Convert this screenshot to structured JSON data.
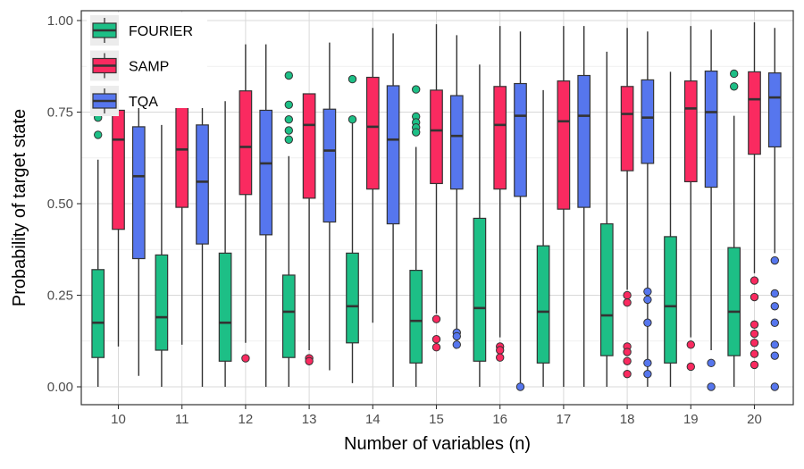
{
  "chart_data": {
    "type": "box",
    "title": "",
    "xlabel": "Number of variables (n)",
    "ylabel": "Probability of target state",
    "ylim": [
      0,
      1
    ],
    "yticks": [
      0.0,
      0.25,
      0.5,
      0.75,
      1.0
    ],
    "ytick_labels": [
      "0.00",
      "0.25",
      "0.50",
      "0.75",
      "1.00"
    ],
    "categories": [
      "10",
      "11",
      "12",
      "13",
      "14",
      "15",
      "16",
      "17",
      "18",
      "19",
      "20"
    ],
    "grid": true,
    "legend_position": "top-left",
    "series": [
      {
        "name": "FOURIER",
        "color": "#1DBF86",
        "boxes": [
          {
            "min": 0.0,
            "q1": 0.08,
            "median": 0.175,
            "q3": 0.32,
            "max": 0.62,
            "outliers": [
              0.735,
              0.688
            ]
          },
          {
            "min": 0.0,
            "q1": 0.1,
            "median": 0.19,
            "q3": 0.36,
            "max": 0.715,
            "outliers": [
              0.778
            ]
          },
          {
            "min": 0.0,
            "q1": 0.07,
            "median": 0.175,
            "q3": 0.365,
            "max": 0.78,
            "outliers": []
          },
          {
            "min": 0.0,
            "q1": 0.08,
            "median": 0.205,
            "q3": 0.305,
            "max": 0.63,
            "outliers": [
              0.85,
              0.77,
              0.73,
              0.7,
              0.675
            ]
          },
          {
            "min": 0.01,
            "q1": 0.12,
            "median": 0.22,
            "q3": 0.365,
            "max": 0.725,
            "outliers": [
              0.84,
              0.73
            ]
          },
          {
            "min": 0.0,
            "q1": 0.065,
            "median": 0.18,
            "q3": 0.318,
            "max": 0.655,
            "outliers": [
              0.812,
              0.738,
              0.722,
              0.708,
              0.695
            ]
          },
          {
            "min": 0.0,
            "q1": 0.07,
            "median": 0.215,
            "q3": 0.46,
            "max": 0.88,
            "outliers": []
          },
          {
            "min": 0.0,
            "q1": 0.065,
            "median": 0.205,
            "q3": 0.385,
            "max": 0.81,
            "outliers": []
          },
          {
            "min": 0.0,
            "q1": 0.085,
            "median": 0.195,
            "q3": 0.445,
            "max": 0.915,
            "outliers": []
          },
          {
            "min": 0.0,
            "q1": 0.065,
            "median": 0.22,
            "q3": 0.41,
            "max": 0.86,
            "outliers": []
          },
          {
            "min": 0.0,
            "q1": 0.085,
            "median": 0.205,
            "q3": 0.38,
            "max": 0.74,
            "outliers": [
              0.855,
              0.82
            ]
          }
        ]
      },
      {
        "name": "SAMP",
        "color": "#FA2A60",
        "boxes": [
          {
            "min": 0.11,
            "q1": 0.43,
            "median": 0.675,
            "q3": 0.755,
            "max": 0.755,
            "outliers": []
          },
          {
            "min": 0.115,
            "q1": 0.49,
            "median": 0.648,
            "q3": 0.765,
            "max": 0.92,
            "outliers": []
          },
          {
            "min": 0.12,
            "q1": 0.525,
            "median": 0.655,
            "q3": 0.808,
            "max": 0.935,
            "outliers": [
              0.078
            ]
          },
          {
            "min": 0.1,
            "q1": 0.515,
            "median": 0.715,
            "q3": 0.8,
            "max": 0.8,
            "outliers": [
              0.078,
              0.07
            ]
          },
          {
            "min": 0.175,
            "q1": 0.54,
            "median": 0.71,
            "q3": 0.845,
            "max": 0.98,
            "outliers": []
          },
          {
            "min": 0.2,
            "q1": 0.555,
            "median": 0.7,
            "q3": 0.81,
            "max": 0.99,
            "outliers": [
              0.185,
              0.13,
              0.108
            ]
          },
          {
            "min": 0.135,
            "q1": 0.54,
            "median": 0.715,
            "q3": 0.82,
            "max": 0.985,
            "outliers": [
              0.11,
              0.1,
              0.08
            ]
          },
          {
            "min": 0.0,
            "q1": 0.485,
            "median": 0.725,
            "q3": 0.835,
            "max": 0.985,
            "outliers": []
          },
          {
            "min": 0.265,
            "q1": 0.59,
            "median": 0.745,
            "q3": 0.82,
            "max": 0.98,
            "outliers": [
              0.25,
              0.23,
              0.11,
              0.095,
              0.07,
              0.035
            ]
          },
          {
            "min": 0.135,
            "q1": 0.56,
            "median": 0.76,
            "q3": 0.835,
            "max": 0.985,
            "outliers": [
              0.115,
              0.055
            ]
          },
          {
            "min": 0.31,
            "q1": 0.635,
            "median": 0.785,
            "q3": 0.86,
            "max": 0.995,
            "outliers": [
              0.29,
              0.245,
              0.17,
              0.145,
              0.12,
              0.09,
              0.06
            ]
          }
        ]
      },
      {
        "name": "TQA",
        "color": "#5676EE",
        "boxes": [
          {
            "min": 0.03,
            "q1": 0.35,
            "median": 0.575,
            "q3": 0.71,
            "max": 0.93,
            "outliers": []
          },
          {
            "min": 0.0,
            "q1": 0.39,
            "median": 0.56,
            "q3": 0.715,
            "max": 0.935,
            "outliers": []
          },
          {
            "min": 0.0,
            "q1": 0.415,
            "median": 0.61,
            "q3": 0.755,
            "max": 0.935,
            "outliers": []
          },
          {
            "min": 0.045,
            "q1": 0.45,
            "median": 0.645,
            "q3": 0.758,
            "max": 0.94,
            "outliers": []
          },
          {
            "min": 0.0,
            "q1": 0.445,
            "median": 0.675,
            "q3": 0.822,
            "max": 0.965,
            "outliers": []
          },
          {
            "min": 0.155,
            "q1": 0.54,
            "median": 0.685,
            "q3": 0.795,
            "max": 0.96,
            "outliers": [
              0.148,
              0.138,
              0.115
            ]
          },
          {
            "min": 0.0,
            "q1": 0.52,
            "median": 0.74,
            "q3": 0.828,
            "max": 0.97,
            "outliers": [
              0.0
            ]
          },
          {
            "min": 0.0,
            "q1": 0.49,
            "median": 0.74,
            "q3": 0.85,
            "max": 0.985,
            "outliers": []
          },
          {
            "min": 0.0,
            "q1": 0.61,
            "median": 0.735,
            "q3": 0.838,
            "max": 0.97,
            "outliers": [
              0.26,
              0.238,
              0.175,
              0.065,
              0.035
            ]
          },
          {
            "min": 0.1,
            "q1": 0.545,
            "median": 0.75,
            "q3": 0.862,
            "max": 0.975,
            "outliers": [
              0.065,
              0.0
            ]
          },
          {
            "min": 0.365,
            "q1": 0.655,
            "median": 0.79,
            "q3": 0.857,
            "max": 0.98,
            "outliers": [
              0.345,
              0.255,
              0.22,
              0.175,
              0.115,
              0.085,
              0.0
            ]
          }
        ]
      }
    ]
  }
}
